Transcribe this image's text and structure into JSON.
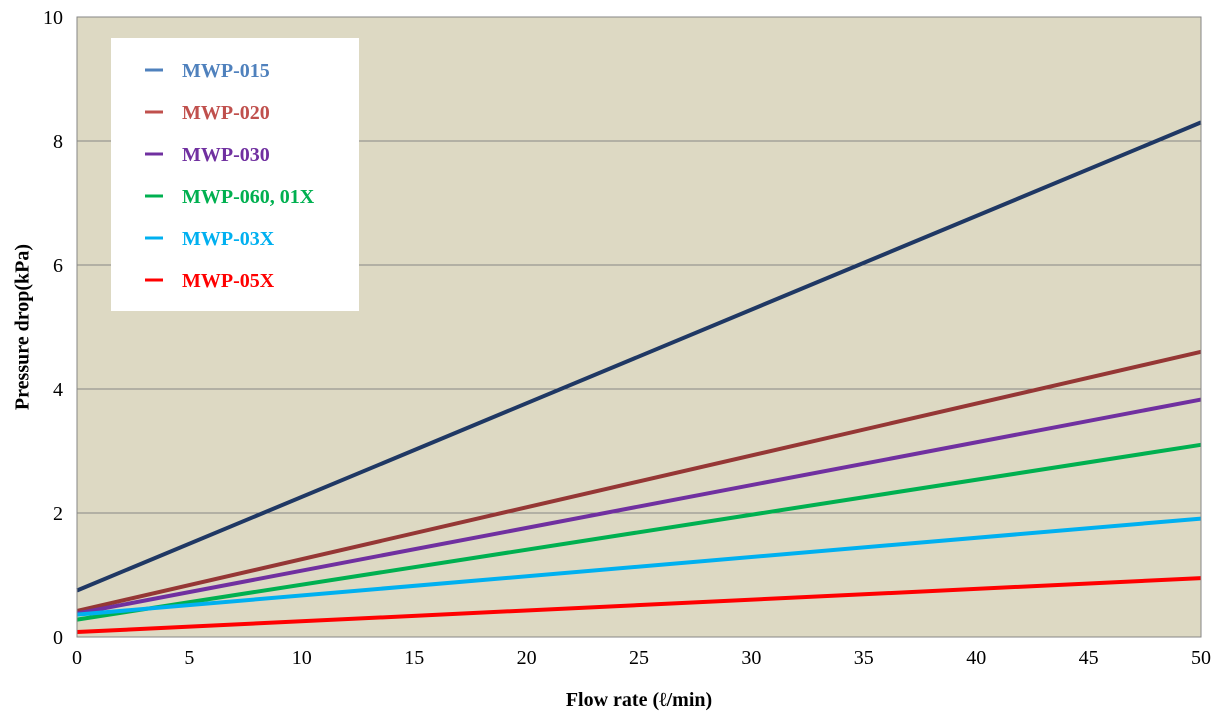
{
  "chart_data": {
    "type": "line",
    "xlabel": "Flow rate (ℓ/min)",
    "ylabel": "Pressure drop(kPa)",
    "xlim": [
      0,
      50
    ],
    "ylim": [
      0,
      10
    ],
    "x_ticks": [
      0,
      5,
      10,
      15,
      20,
      25,
      30,
      35,
      40,
      45,
      50
    ],
    "y_ticks": [
      0,
      2,
      4,
      6,
      8,
      10
    ],
    "grid": "horizontal",
    "legend_position": "top-left",
    "plot_background": "#ddd9c3",
    "series": [
      {
        "name": "MWP-015",
        "color": "#1f3864",
        "legend_color": "#4f81bd",
        "x": [
          0,
          50
        ],
        "y": [
          0.75,
          8.3
        ]
      },
      {
        "name": "MWP-020",
        "color": "#953735",
        "legend_color": "#c0504d",
        "x": [
          0,
          50
        ],
        "y": [
          0.42,
          4.6
        ]
      },
      {
        "name": "MWP-030",
        "color": "#7030a0",
        "legend_color": "#7030a0",
        "x": [
          0,
          50
        ],
        "y": [
          0.38,
          3.83
        ]
      },
      {
        "name": "MWP-060, 01X",
        "color": "#00b050",
        "legend_color": "#00b050",
        "x": [
          0,
          50
        ],
        "y": [
          0.28,
          3.1
        ]
      },
      {
        "name": "MWP-03X",
        "color": "#00b0f0",
        "legend_color": "#00b0f0",
        "x": [
          0,
          50
        ],
        "y": [
          0.36,
          1.91
        ]
      },
      {
        "name": "MWP-05X",
        "color": "#ff0000",
        "legend_color": "#ff0000",
        "x": [
          0,
          50
        ],
        "y": [
          0.08,
          0.95
        ]
      }
    ]
  }
}
